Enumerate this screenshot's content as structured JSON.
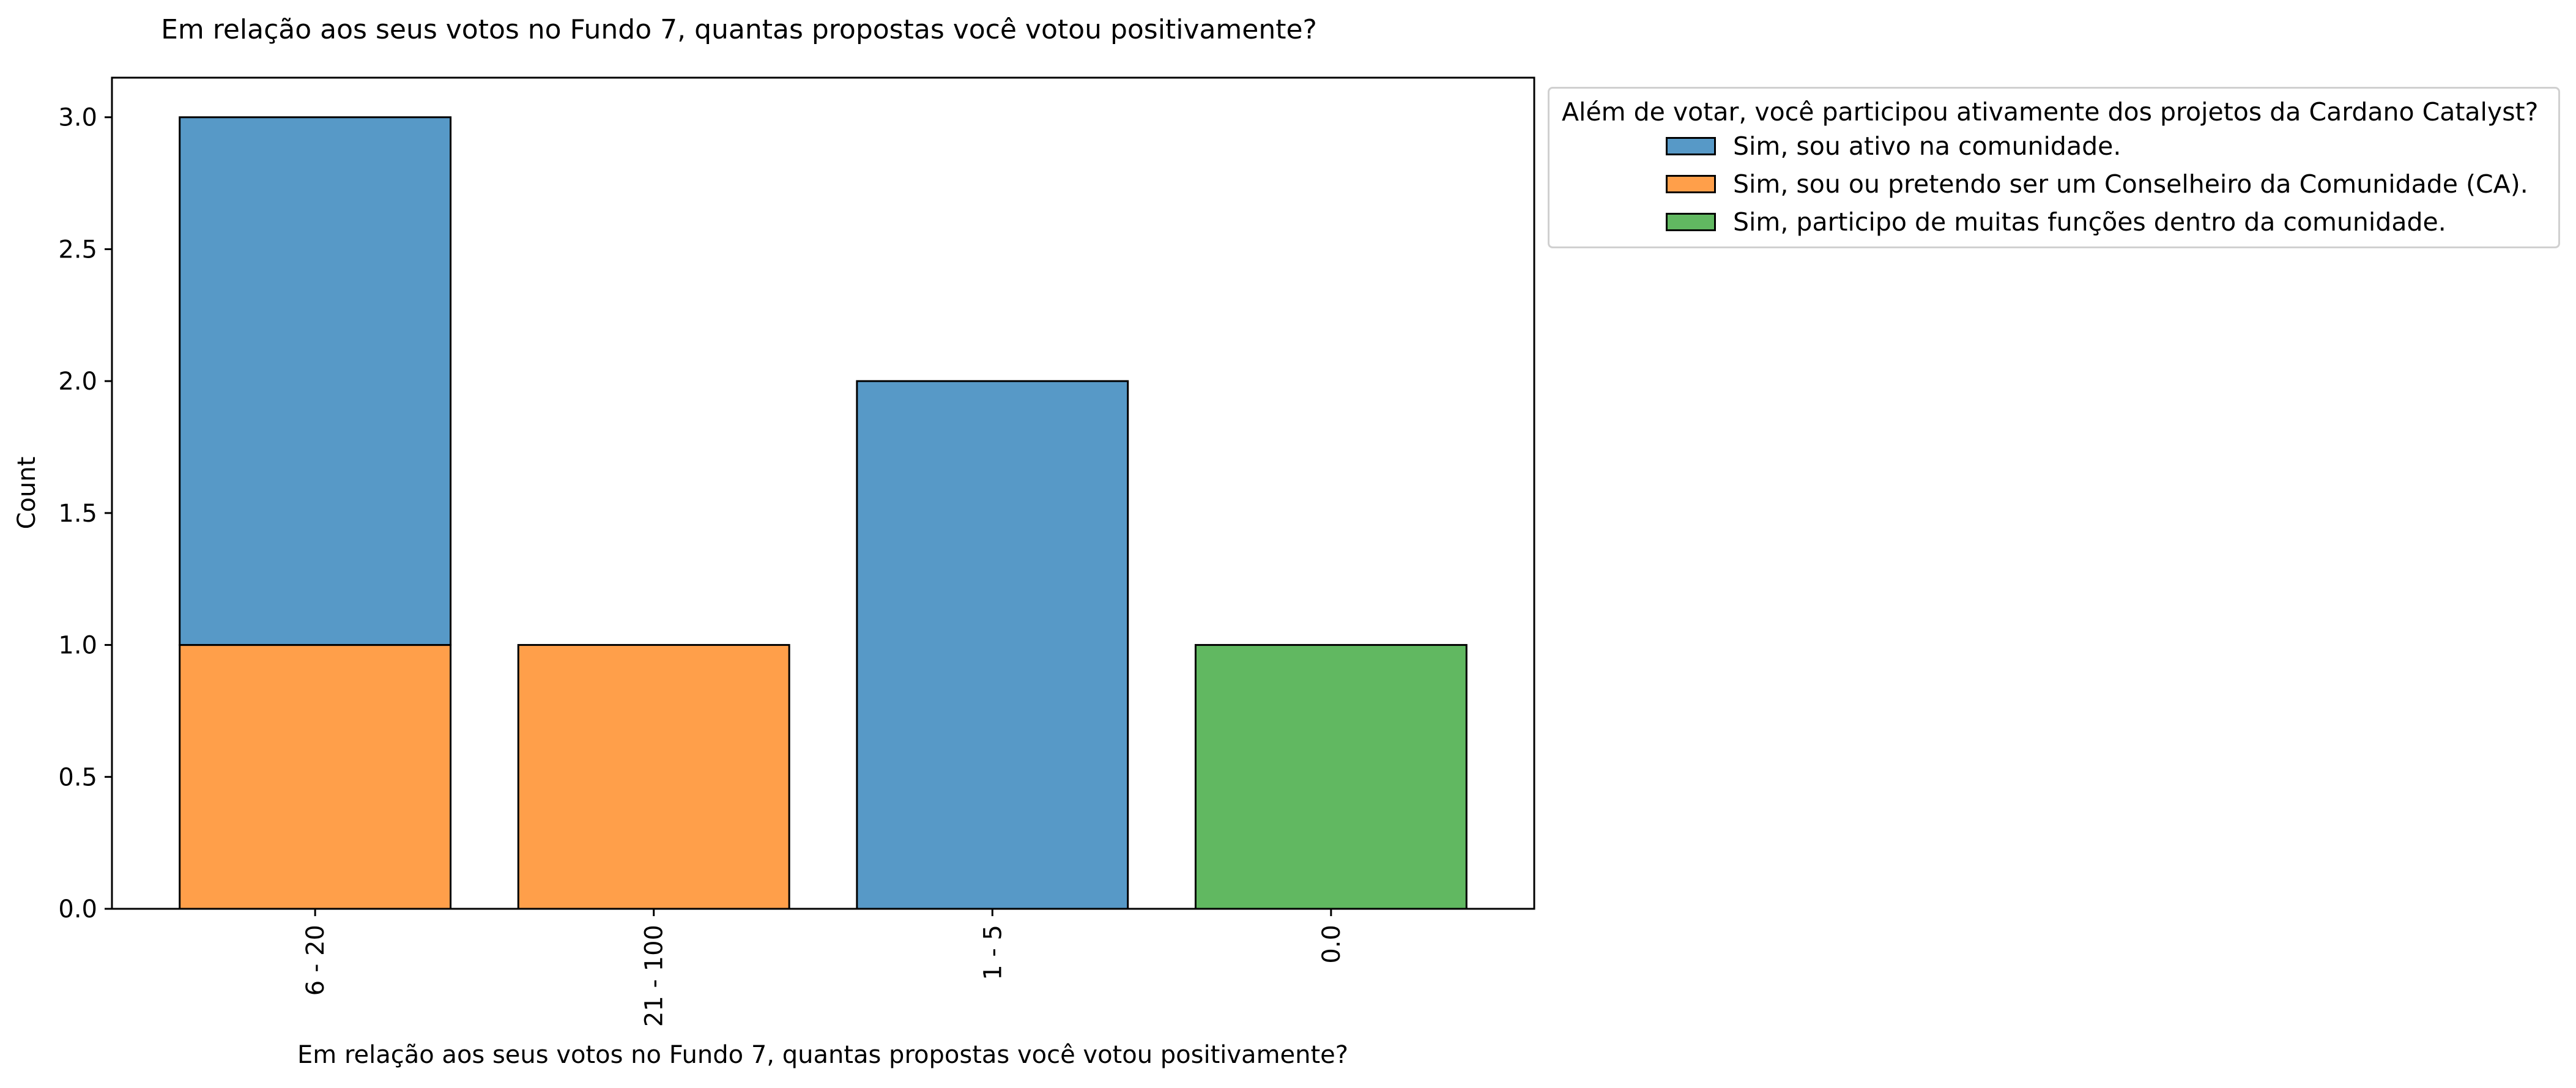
{
  "chart_data": {
    "type": "bar",
    "stacked": true,
    "title": "Em relação aos seus votos no Fundo 7, quantas propostas você votou positivamente?",
    "xlabel": "Em relação aos seus votos no Fundo 7, quantas propostas você votou positivamente?",
    "ylabel": "Count",
    "categories": [
      "6 - 20",
      "21 - 100",
      "1 - 5",
      "0.0"
    ],
    "ylim": [
      0,
      3.15
    ],
    "yticks": [
      "0.0",
      "0.5",
      "1.0",
      "1.5",
      "2.0",
      "2.5",
      "3.0"
    ],
    "grid": false,
    "legend": {
      "title": "Além de votar, você participou ativamente dos projetos da Cardano Catalyst?",
      "placement": "outside-right"
    },
    "series": [
      {
        "name": "Sim, sou ou pretendo ser um Conselheiro da Comunidade (CA).",
        "color": "#ff9f4a",
        "values": [
          1,
          1,
          0,
          0
        ]
      },
      {
        "name": "Sim, sou ativo na comunidade.",
        "color": "#5799c7",
        "values": [
          2,
          0,
          2,
          0
        ]
      },
      {
        "name": "Sim, participo de muitas funções dentro da comunidade.",
        "color": "#61b861",
        "values": [
          0,
          0,
          0,
          1
        ]
      }
    ],
    "legend_order": [
      1,
      0,
      2
    ]
  }
}
